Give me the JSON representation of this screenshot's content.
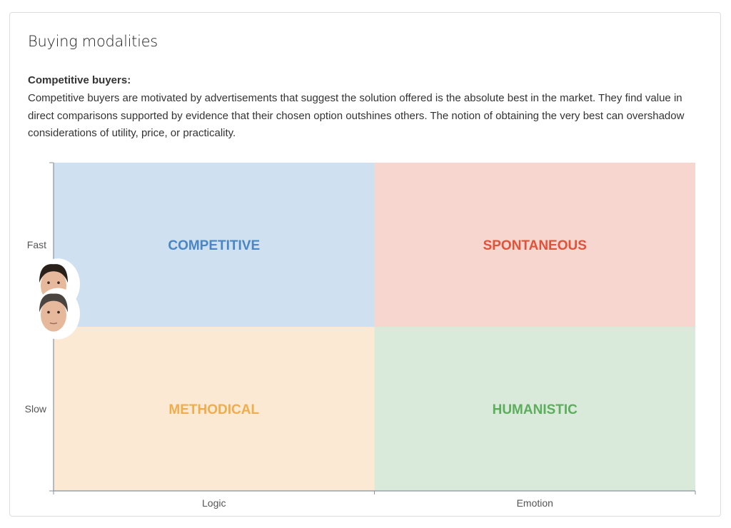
{
  "card": {
    "title": "Buying modalities",
    "subtitle": "Competitive buyers:",
    "description": "Competitive buyers are motivated by advertisements that suggest the solution offered is the absolute best in the market. They find value in direct comparisons supported by evidence that their chosen option outshines others. The notion of obtaining the very best can overshadow considerations of utility, price, or practicality."
  },
  "chart_data": {
    "type": "scatter",
    "subtype": "quadrant",
    "x_categories": [
      "Logic",
      "Emotion"
    ],
    "y_categories": [
      "Slow",
      "Fast"
    ],
    "xlim": [
      0,
      100
    ],
    "ylim": [
      0,
      100
    ],
    "grid": false,
    "quadrants": [
      {
        "label": "COMPETITIVE",
        "x": "Logic",
        "y": "Fast",
        "fill": "#cfe0f0",
        "text_color": "#4a86c5"
      },
      {
        "label": "SPONTANEOUS",
        "x": "Emotion",
        "y": "Fast",
        "fill": "#f6d6ce",
        "text_color": "#e0533a"
      },
      {
        "label": "METHODICAL",
        "x": "Logic",
        "y": "Slow",
        "fill": "#fbe9d3",
        "text_color": "#f0ad4e"
      },
      {
        "label": "HUMANISTIC",
        "x": "Emotion",
        "y": "Slow",
        "fill": "#d9eada",
        "text_color": "#5cad5c"
      }
    ],
    "points": [
      {
        "marker": "avatar-dark-hair",
        "x": 0,
        "y": 63
      },
      {
        "marker": "avatar-grey-hair",
        "x": 0,
        "y": 54
      }
    ]
  }
}
